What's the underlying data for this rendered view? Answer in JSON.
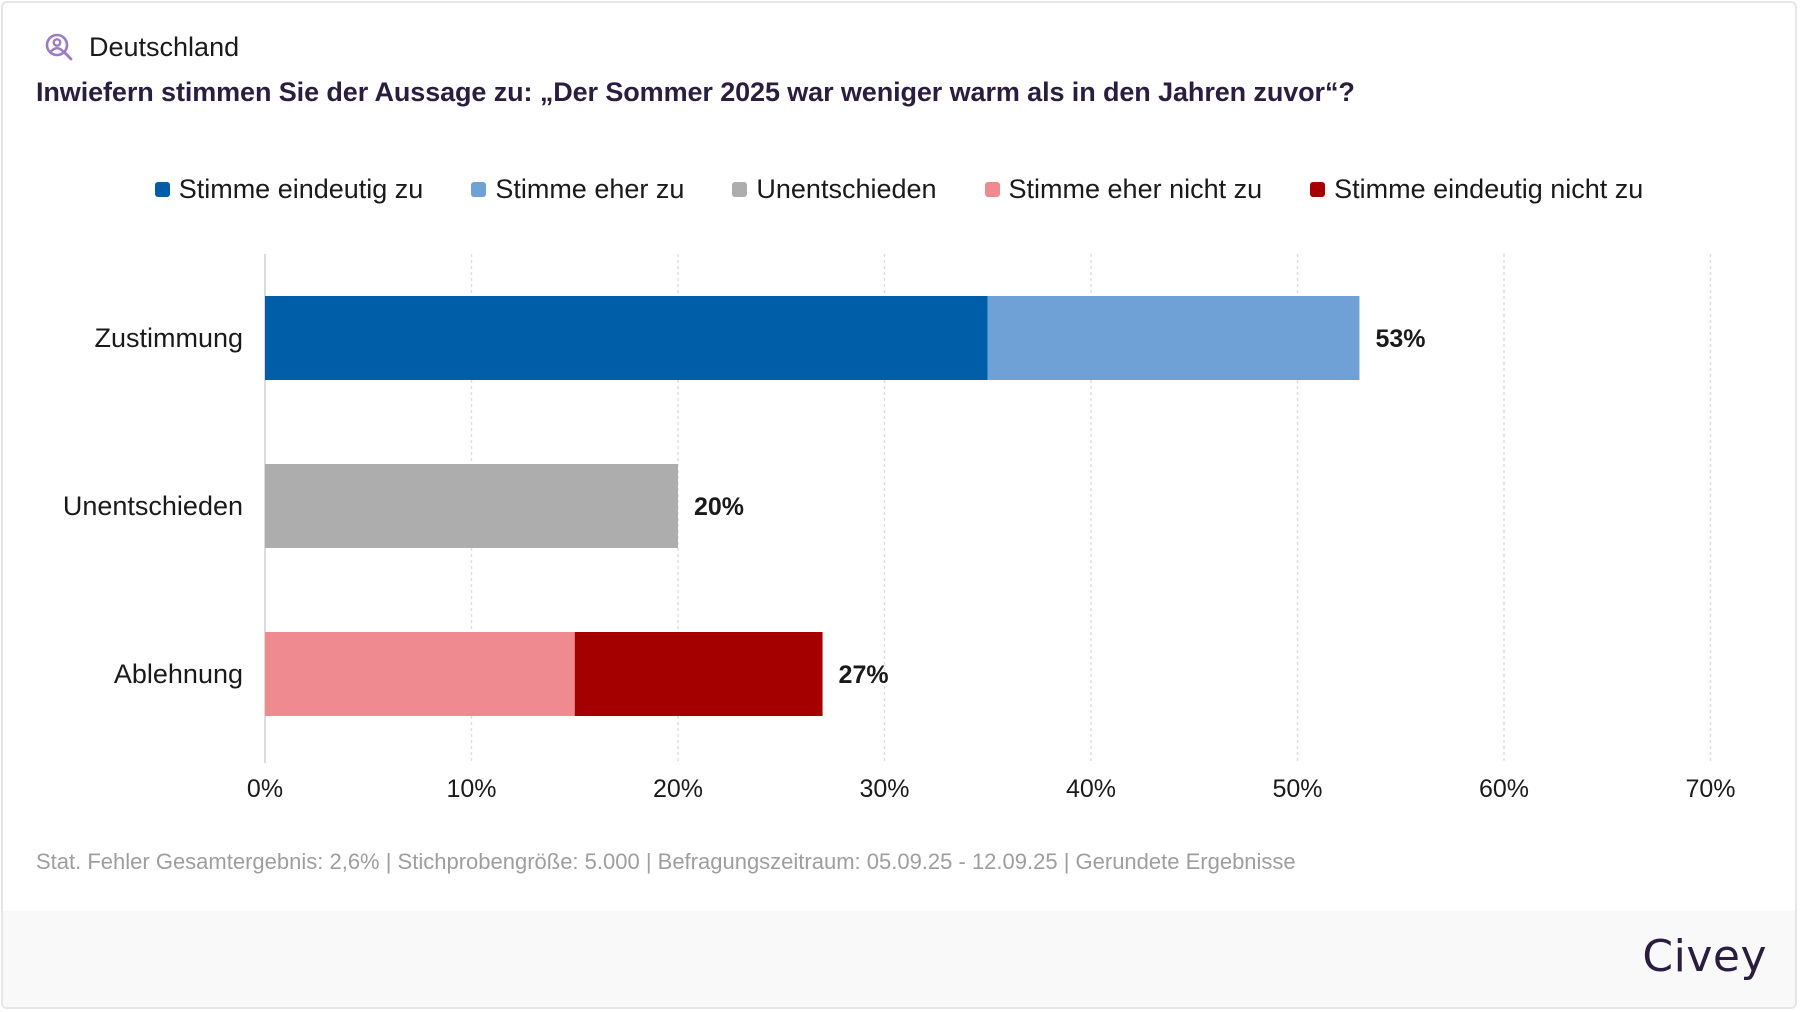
{
  "header": {
    "region_label": "Deutschland",
    "region_icon": "person-search-icon",
    "question": "Inwiefern stimmen Sie der Aussage zu: „Der Sommer 2025 war weniger warm als in den Jahren zuvor“?"
  },
  "colors": {
    "icon": "#9b7cc4",
    "strong_agree": "#005ea8",
    "agree": "#6fa1d6",
    "undecided": "#adadad",
    "disagree": "#f08a91",
    "strong_disagree": "#a50000"
  },
  "chart_data": {
    "type": "bar",
    "orientation": "horizontal",
    "stacked": true,
    "title": "Inwiefern stimmen Sie der Aussage zu: „Der Sommer 2025 war weniger warm als in den Jahren zuvor“?",
    "categories": [
      "Zustimmung",
      "Unentschieden",
      "Ablehnung"
    ],
    "series": [
      {
        "name": "Stimme eindeutig zu",
        "color": "#005ea8",
        "values": [
          35,
          0,
          0
        ]
      },
      {
        "name": "Stimme eher zu",
        "color": "#6fa1d6",
        "values": [
          18,
          0,
          0
        ]
      },
      {
        "name": "Unentschieden",
        "color": "#adadad",
        "values": [
          0,
          20,
          0
        ]
      },
      {
        "name": "Stimme eher nicht zu",
        "color": "#f08a91",
        "values": [
          0,
          0,
          15
        ]
      },
      {
        "name": "Stimme eindeutig nicht zu",
        "color": "#a50000",
        "values": [
          0,
          0,
          12
        ]
      }
    ],
    "totals": [
      "53%",
      "20%",
      "27%"
    ],
    "xlim": [
      0,
      70
    ],
    "xticks": [
      0,
      10,
      20,
      30,
      40,
      50,
      60,
      70
    ],
    "xtick_labels": [
      "0%",
      "10%",
      "20%",
      "30%",
      "40%",
      "50%",
      "60%",
      "70%"
    ],
    "xlabel": "",
    "ylabel": "",
    "grid": "vertical dotted",
    "legend_position": "top-center"
  },
  "footnote": "Stat. Fehler Gesamtergebnis: 2,6% | Stichprobengröße: 5.000 | Befragungszeitraum: 05.09.25 - 12.09.25 | Gerundete Ergebnisse",
  "footer": {
    "brand": "Civey"
  }
}
